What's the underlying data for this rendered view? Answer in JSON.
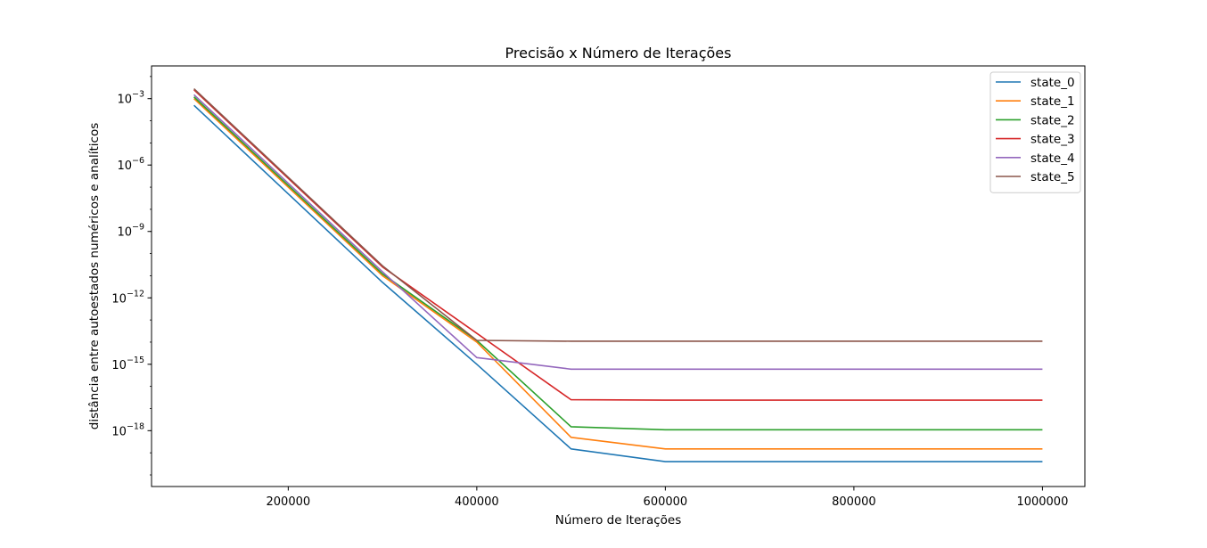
{
  "chart_data": {
    "type": "line",
    "title": "Precisão x Número de Iterações",
    "xlabel": "Número de Iterações",
    "ylabel": "distância entre autoestados numéricos e analíticos",
    "x_scale": "linear",
    "y_scale": "log",
    "xlim": [
      55000,
      1045000
    ],
    "ylim": [
      3e-21,
      0.03
    ],
    "x_ticks": [
      200000,
      400000,
      600000,
      800000,
      1000000
    ],
    "x_tick_labels": [
      "200000",
      "400000",
      "600000",
      "800000",
      "1000000"
    ],
    "y_ticks": [
      1e-18,
      1e-15,
      1e-12,
      1e-09,
      1e-06,
      0.001
    ],
    "y_tick_labels": [
      {
        "base": "10",
        "exp": "−18"
      },
      {
        "base": "10",
        "exp": "−15"
      },
      {
        "base": "10",
        "exp": "−12"
      },
      {
        "base": "10",
        "exp": "−9"
      },
      {
        "base": "10",
        "exp": "−6"
      },
      {
        "base": "10",
        "exp": "−3"
      }
    ],
    "grid": false,
    "legend_position": "top-right",
    "x": [
      100000,
      200000,
      300000,
      400000,
      500000,
      600000,
      700000,
      800000,
      900000,
      1000000
    ],
    "series": [
      {
        "name": "state_0",
        "color": "#1f77b4",
        "values": [
          0.0005,
          5e-08,
          5e-12,
          1e-15,
          1.5e-19,
          4e-20,
          4e-20,
          4e-20,
          4e-20,
          4e-20
        ]
      },
      {
        "name": "state_1",
        "color": "#ff7f0e",
        "values": [
          0.001,
          1e-07,
          1e-11,
          1e-14,
          5e-19,
          1.5e-19,
          1.5e-19,
          1.5e-19,
          1.5e-19,
          1.5e-19
        ]
      },
      {
        "name": "state_2",
        "color": "#2ca02c",
        "values": [
          0.0012,
          1.2e-07,
          1.2e-11,
          1.2e-14,
          1.5e-18,
          1.1e-18,
          1.1e-18,
          1.1e-18,
          1.1e-18,
          1.1e-18
        ]
      },
      {
        "name": "state_3",
        "color": "#d62728",
        "values": [
          0.0025,
          2.5e-07,
          2.5e-11,
          2.5e-14,
          2.5e-17,
          2.4e-17,
          2.4e-17,
          2.4e-17,
          2.4e-17,
          2.4e-17
        ]
      },
      {
        "name": "state_4",
        "color": "#9467bd",
        "values": [
          0.0015,
          1.5e-07,
          1.5e-11,
          2e-15,
          6e-16,
          6e-16,
          6e-16,
          6e-16,
          6e-16,
          6e-16
        ]
      },
      {
        "name": "state_5",
        "color": "#8c564b",
        "values": [
          0.0028,
          2.8e-07,
          2.8e-11,
          1.2e-14,
          1.1e-14,
          1.1e-14,
          1.1e-14,
          1.1e-14,
          1.1e-14,
          1.1e-14
        ]
      }
    ]
  }
}
